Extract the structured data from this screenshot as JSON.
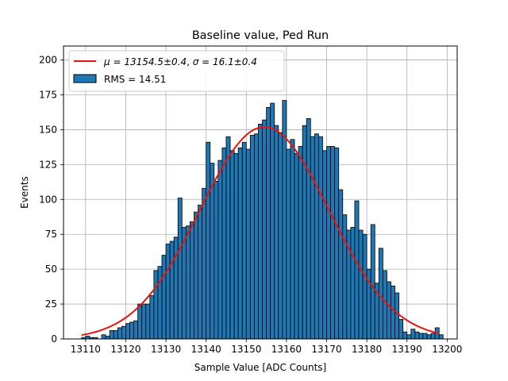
{
  "chart_data": {
    "type": "bar",
    "title": "Baseline value, Ped Run",
    "xlabel": "Sample Value [ADC Counts]",
    "ylabel": "Events",
    "xlim": [
      13104.5,
      13202.5
    ],
    "ylim": [
      0,
      210
    ],
    "xticks": [
      13110,
      13120,
      13130,
      13140,
      13150,
      13160,
      13170,
      13180,
      13190,
      13200
    ],
    "yticks": [
      0,
      25,
      50,
      75,
      100,
      125,
      150,
      175,
      200
    ],
    "grid": true,
    "legend_position": "top-left",
    "histogram": {
      "bin_start": 13109,
      "bin_width": 1,
      "counts": [
        1,
        2,
        1,
        1,
        0,
        3,
        2,
        6,
        6,
        8,
        9,
        11,
        12,
        13,
        25,
        25,
        25,
        31,
        49,
        52,
        60,
        68,
        70,
        73,
        101,
        80,
        81,
        84,
        91,
        96,
        108,
        141,
        126,
        113,
        128,
        137,
        145,
        135,
        133,
        137,
        141,
        136,
        146,
        147,
        154,
        157,
        166,
        169,
        153,
        148,
        171,
        136,
        143,
        133,
        138,
        153,
        158,
        145,
        147,
        145,
        135,
        138,
        138,
        137,
        107,
        89,
        78,
        80,
        99,
        78,
        75,
        50,
        82,
        40,
        65,
        49,
        41,
        38,
        33,
        14,
        5,
        3,
        7,
        5,
        4,
        4,
        3,
        4,
        8,
        3,
        0,
        0,
        0,
        0,
        0,
        0,
        0,
        0
      ],
      "series_name": "RMS = 14.51",
      "color": "#1f77b4",
      "edge_color": "#000000"
    },
    "fit": {
      "type": "gaussian",
      "mu": 13154.5,
      "sigma": 16.1,
      "amplitude": 152,
      "x_range": [
        13109,
        13198
      ],
      "legend_label_mu": "μ = 13154.5±0.4",
      "legend_label_sigma": "σ = 16.1±0.4",
      "color": "#e8140c"
    }
  }
}
